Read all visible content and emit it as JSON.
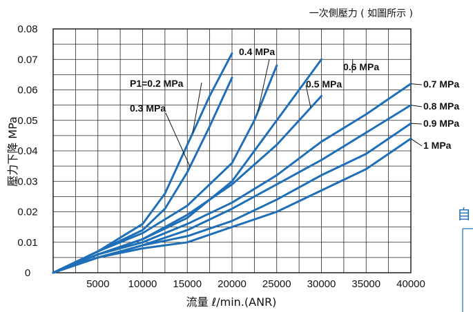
{
  "chart_data": {
    "type": "line",
    "title": "",
    "note": "一次側壓力 ( 如圖所示 )",
    "xlabel": "流量  ℓ/min.(ANR)",
    "ylabel": "壓力下降  MPa",
    "xlim": [
      0,
      40000
    ],
    "ylim": [
      0,
      0.08
    ],
    "x_ticks": [
      5000,
      10000,
      15000,
      20000,
      25000,
      30000,
      35000,
      40000
    ],
    "y_ticks": [
      0,
      0.01,
      0.02,
      0.03,
      0.04,
      0.05,
      0.06,
      0.07,
      0.08
    ],
    "x_tick_labels": [
      "5000",
      "10000",
      "15000",
      "20000",
      "25000",
      "30000",
      "35000",
      "40000"
    ],
    "y_tick_labels": [
      "0",
      "0.01",
      "0.02",
      "0.03",
      "0.04",
      "0.05",
      "0.06",
      "0.07",
      "0.08"
    ],
    "grid": true,
    "line_color": "#1e6fb8",
    "series": [
      {
        "name": "P1=0.2 MPa",
        "x": [
          0,
          5000,
          10000,
          12500,
          15000,
          17500,
          20000
        ],
        "y": [
          0,
          0.007,
          0.016,
          0.026,
          0.042,
          0.058,
          0.072
        ]
      },
      {
        "name": "0.3 MPa",
        "x": [
          0,
          5000,
          10000,
          12500,
          15000,
          17500,
          20000
        ],
        "y": [
          0,
          0.007,
          0.014,
          0.021,
          0.033,
          0.048,
          0.064
        ]
      },
      {
        "name": "0.4 MPa",
        "x": [
          0,
          5000,
          10000,
          15000,
          20000,
          22500,
          25000
        ],
        "y": [
          0,
          0.007,
          0.013,
          0.022,
          0.036,
          0.05,
          0.068
        ]
      },
      {
        "name": "0.5 MPa",
        "x": [
          0,
          5000,
          10000,
          15000,
          20000,
          25000,
          30000
        ],
        "y": [
          0,
          0.006,
          0.011,
          0.019,
          0.029,
          0.042,
          0.058
        ]
      },
      {
        "name": "0.6 MPa",
        "x": [
          0,
          5000,
          10000,
          15000,
          20000,
          25000,
          30000
        ],
        "y": [
          0,
          0.006,
          0.011,
          0.018,
          0.03,
          0.05,
          0.07
        ]
      },
      {
        "name": "0.7 MPa",
        "x": [
          0,
          5000,
          10000,
          15000,
          20000,
          25000,
          30000,
          35000,
          40000
        ],
        "y": [
          0,
          0.006,
          0.01,
          0.016,
          0.023,
          0.032,
          0.043,
          0.052,
          0.062
        ]
      },
      {
        "name": "0.8 MPa",
        "x": [
          0,
          5000,
          10000,
          15000,
          20000,
          25000,
          30000,
          35000,
          40000
        ],
        "y": [
          0,
          0.005,
          0.009,
          0.014,
          0.021,
          0.029,
          0.037,
          0.046,
          0.055
        ]
      },
      {
        "name": "0.9 MPa",
        "x": [
          0,
          5000,
          10000,
          15000,
          20000,
          25000,
          30000,
          35000,
          40000
        ],
        "y": [
          0,
          0.005,
          0.009,
          0.012,
          0.017,
          0.024,
          0.032,
          0.039,
          0.049
        ]
      },
      {
        "name": "1 MPa",
        "x": [
          0,
          5000,
          10000,
          15000,
          20000,
          25000,
          30000,
          35000,
          40000
        ],
        "y": [
          0,
          0.005,
          0.008,
          0.01,
          0.015,
          0.02,
          0.027,
          0.034,
          0.044
        ]
      }
    ],
    "labels": [
      {
        "text": "P1=0.2 MPa",
        "series": "P1=0.2 MPa"
      },
      {
        "text": "0.3 MPa",
        "series": "0.3 MPa"
      },
      {
        "text": "0.4 MPa",
        "series": "0.4 MPa"
      },
      {
        "text": "0.5 MPa",
        "series": "0.5 MPa"
      },
      {
        "text": "0.6 MPa",
        "series": "0.6 MPa"
      },
      {
        "text": "0.7 MPa",
        "series": "0.7 MPa"
      },
      {
        "text": "0.8 MPa",
        "series": "0.8 MPa"
      },
      {
        "text": "0.9 MPa",
        "series": "0.9 MPa"
      },
      {
        "text": "1 MPa",
        "series": "1 MPa"
      }
    ]
  },
  "overlay": {
    "partial_text": "自",
    "accent_color": "#1e6fb8"
  }
}
